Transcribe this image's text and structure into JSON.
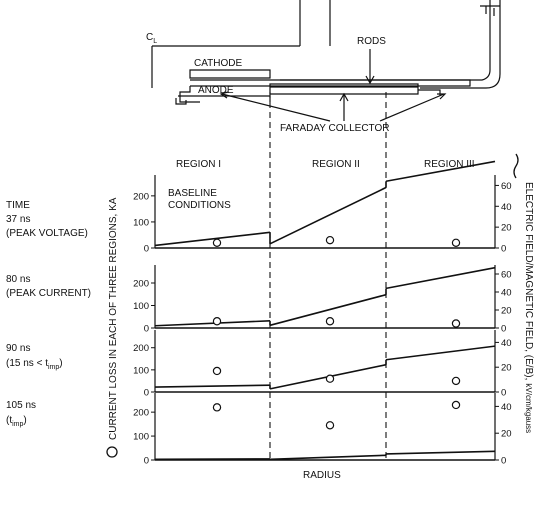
{
  "schematic": {
    "centerline_label": "C",
    "centerline_sub": "L",
    "cathode_label": "CATHODE",
    "anode_label": "ANODE",
    "rods_label": "RODS",
    "collector_label": "FARADAY COLLECTOR"
  },
  "regions": [
    "REGION I",
    "REGION II",
    "REGION III"
  ],
  "time_heading": "TIME",
  "panels": [
    {
      "time": "37 ns",
      "note": "(PEAK VOLTAGE)",
      "annotation": [
        "BASELINE",
        "CONDITIONS"
      ]
    },
    {
      "time": "80 ns",
      "note": "(PEAK CURRENT)"
    },
    {
      "time": "90 ns",
      "note": "(15 ns < t",
      "note_sub": "imp",
      "note_end": ")"
    },
    {
      "time": "105 ns",
      "note": "(t",
      "note_sub": "imp",
      "note_end": ")"
    }
  ],
  "left_axis_label": "CURRENT LOSS IN EACH OF THREE REGIONS, KA",
  "right_axis_label_main": "ELECTRIC FIELD/MAGNETIC FIELD, (E/B),",
  "right_axis_unit_num": "kV",
  "right_axis_unit_den": "cm",
  "right_axis_unit_tail": "/kgauss",
  "x_label": "RADIUS",
  "chart_data": {
    "type": "line",
    "xlabel": "RADIUS",
    "ylabel": "CURRENT LOSS IN EACH OF THREE REGIONS, KA",
    "y2label": "ELECTRIC FIELD/MAGNETIC FIELD, (E/B), kV/cm/kgauss",
    "regions": [
      "REGION I",
      "REGION II",
      "REGION III"
    ],
    "panels": [
      {
        "time": "37 ns",
        "ylim": [
          0,
          280
        ],
        "y2lim": [
          0,
          70
        ],
        "yticks": [
          "0",
          "100",
          "200"
        ],
        "y2ticks": [
          "0",
          "20",
          "40",
          "60"
        ],
        "current_loss": [
          20,
          30,
          20
        ],
        "field": [
          [
            [
              0,
              2.5
            ],
            [
              1,
              15
            ]
          ],
          [
            [
              1,
              4
            ],
            [
              2,
              58
            ]
          ],
          [
            [
              2,
              64
            ],
            [
              3,
              83
            ]
          ]
        ]
      },
      {
        "time": "80 ns",
        "ylim": [
          0,
          280
        ],
        "y2lim": [
          0,
          70
        ],
        "yticks": [
          "0",
          "100",
          "200"
        ],
        "y2ticks": [
          "0",
          "20",
          "40",
          "60"
        ],
        "current_loss": [
          30,
          30,
          20
        ],
        "field": [
          [
            [
              0,
              2.5
            ],
            [
              1,
              8
            ]
          ],
          [
            [
              1,
              3
            ],
            [
              2,
              37
            ]
          ],
          [
            [
              2,
              44
            ],
            [
              3,
              67
            ]
          ]
        ]
      },
      {
        "time": "90 ns",
        "ylim": [
          0,
          280
        ],
        "y2lim": [
          0,
          50
        ],
        "yticks": [
          "0",
          "100",
          "200"
        ],
        "y2ticks": [
          "0",
          "20",
          "40"
        ],
        "current_loss": [
          95,
          60,
          50
        ],
        "field": [
          [
            [
              0,
              4
            ],
            [
              1,
              5.5
            ]
          ],
          [
            [
              1,
              2.5
            ],
            [
              2,
              22
            ]
          ],
          [
            [
              2,
              26
            ],
            [
              3,
              37
            ]
          ]
        ]
      },
      {
        "time": "105 ns",
        "ylim": [
          0,
          280
        ],
        "y2lim": [
          0,
          50
        ],
        "yticks": [
          "0",
          "100",
          "200"
        ],
        "y2ticks": [
          "0",
          "20",
          "40"
        ],
        "current_loss": [
          220,
          145,
          230
        ],
        "field": [
          [
            [
              0,
              0.5
            ],
            [
              1,
              0.8
            ]
          ],
          [
            [
              1,
              0.5
            ],
            [
              2,
              3.5
            ]
          ],
          [
            [
              2,
              4.5
            ],
            [
              3,
              6.5
            ]
          ]
        ]
      }
    ]
  }
}
